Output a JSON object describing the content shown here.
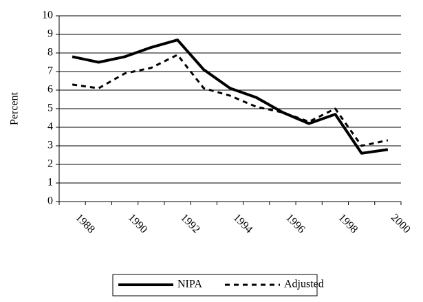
{
  "chart_data": {
    "type": "line",
    "y_label": "Percent",
    "categories": [
      "1988",
      null,
      "1990",
      null,
      "1992",
      null,
      "1994",
      null,
      "1996",
      null,
      "1998",
      null,
      "2000"
    ],
    "series": [
      {
        "name": "NIPA",
        "color": "#000000",
        "dash": false,
        "values": [
          7.8,
          7.5,
          7.8,
          8.3,
          8.7,
          7.1,
          6.1,
          5.6,
          4.8,
          4.2,
          4.7,
          2.6,
          2.8
        ]
      },
      {
        "name": "Adjusted",
        "color": "#000000",
        "dash": true,
        "values": [
          6.3,
          6.1,
          6.9,
          7.2,
          7.9,
          6.1,
          5.7,
          5.1,
          4.8,
          4.3,
          5.0,
          3.0,
          3.3
        ]
      }
    ],
    "ylim": [
      0,
      10
    ],
    "yticks": [
      0,
      1,
      2,
      3,
      4,
      5,
      6,
      7,
      8,
      9,
      10
    ],
    "grid": true,
    "legend": "bottom"
  }
}
